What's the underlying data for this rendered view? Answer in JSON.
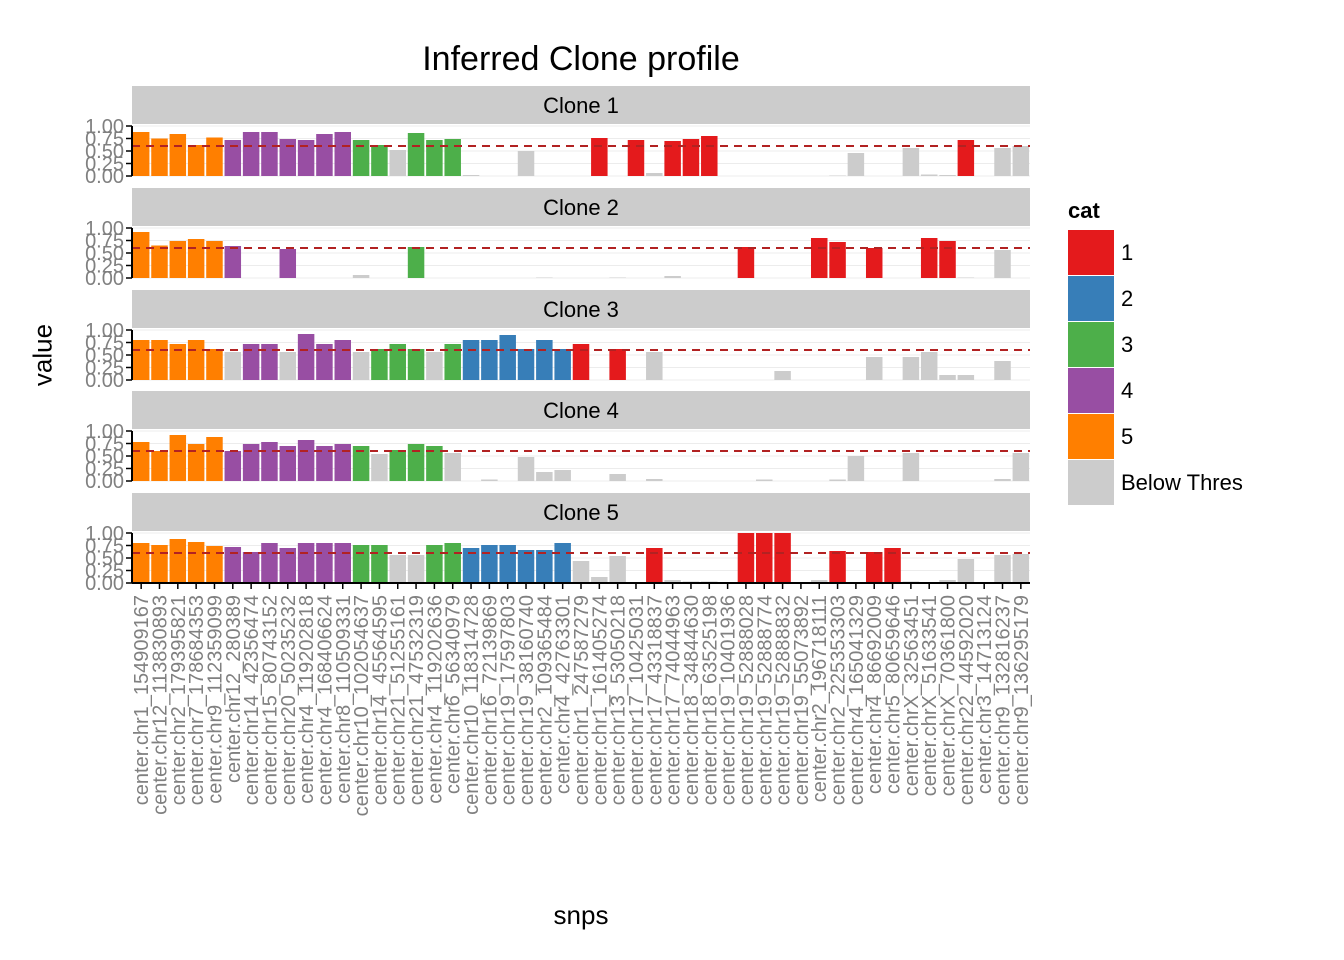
{
  "chart_data": {
    "type": "bar",
    "title": "Inferred Clone profile",
    "xlabel": "snps",
    "ylabel": "value",
    "ylim": [
      0,
      1
    ],
    "y_ticks": [
      "0.00",
      "0.25",
      "0.50",
      "0.75",
      "1.00"
    ],
    "grid": true,
    "legend": {
      "title": "cat",
      "position": "right",
      "entries": [
        {
          "label": "1",
          "color": "#e41a1c"
        },
        {
          "label": "2",
          "color": "#377eb8"
        },
        {
          "label": "3",
          "color": "#4daf4a"
        },
        {
          "label": "4",
          "color": "#984ea3"
        },
        {
          "label": "5",
          "color": "#ff7f00"
        },
        {
          "label": "Below Thres",
          "color": "#cccccc"
        }
      ]
    },
    "categories": [
      "center.chr1_154909167",
      "center.chr12_113830893",
      "center.chr2_179395821",
      "center.chr7_178684353",
      "center.chr9_112359099",
      "center.chr12_280389",
      "center.chr14_42356474",
      "center.chr15_80743152",
      "center.chr20_50235232",
      "center.chr4_119202818",
      "center.chr4_168406624",
      "center.chr8_110509331",
      "center.chr10_102054637",
      "center.chr14_45564595",
      "center.chr21_51255161",
      "center.chr21_47532319",
      "center.chr4_119202636",
      "center.chr6_56340979",
      "center.chr10_118314728",
      "center.chr16_72139869",
      "center.chr19_17597803",
      "center.chr19_38160740",
      "center.chr2_109365484",
      "center.chr4_42763301",
      "center.chr1_247587279",
      "center.chr1_161405274",
      "center.chr13_53050218",
      "center.chr17_10425031",
      "center.chr17_43318837",
      "center.chr17_74044963",
      "center.chr18_34844630",
      "center.chr18_63525198",
      "center.chr19_10401936",
      "center.chr19_52888028",
      "center.chr19_52888774",
      "center.chr19_52888832",
      "center.chr19_55073892",
      "center.chr2_196718111",
      "center.chr2_225353303",
      "center.chr4_165041329",
      "center.chr4_86692009",
      "center.chr5_80659646",
      "center.chrX_32563451",
      "center.chrX_51633541",
      "center.chrX_70361800",
      "center.chr22_44592020",
      "center.chr3_14713124",
      "center.chr9_132816237",
      "center.chr9_136295179"
    ],
    "threshold": 0.6,
    "facets": [
      {
        "label": "Clone 1",
        "values": [
          0.88,
          0.75,
          0.84,
          0.62,
          0.77,
          0.72,
          0.88,
          0.88,
          0.74,
          0.72,
          0.84,
          0.88,
          0.72,
          0.62,
          0.52,
          0.86,
          0.72,
          0.74,
          0.02,
          0,
          0,
          0.5,
          0,
          0,
          0,
          0.76,
          0,
          0.72,
          0.06,
          0.7,
          0.74,
          0.8,
          0,
          0,
          0,
          0,
          0,
          0,
          0.01,
          0.46,
          0,
          0,
          0.56,
          0.03,
          0.02,
          0.72,
          0,
          0.56,
          0.6
        ],
        "cats": [
          "5",
          "5",
          "5",
          "5",
          "5",
          "4",
          "4",
          "4",
          "4",
          "4",
          "4",
          "4",
          "3",
          "3",
          "B",
          "3",
          "3",
          "3",
          "B",
          "B",
          "B",
          "B",
          "B",
          "B",
          "B",
          "1",
          "B",
          "1",
          "B",
          "1",
          "1",
          "1",
          "B",
          "B",
          "B",
          "B",
          "B",
          "B",
          "B",
          "B",
          "B",
          "B",
          "B",
          "B",
          "B",
          "1",
          "B",
          "B",
          "B"
        ]
      },
      {
        "label": "Clone 2",
        "values": [
          0.92,
          0.65,
          0.74,
          0.78,
          0.74,
          0.64,
          0,
          0,
          0.58,
          0,
          0,
          0,
          0.06,
          0,
          0,
          0.62,
          0,
          0,
          0,
          0,
          0,
          0,
          0.01,
          0,
          0,
          0,
          0.01,
          0,
          0,
          0.04,
          0,
          0,
          0,
          0.62,
          0,
          0,
          0,
          0.8,
          0.72,
          0,
          0.6,
          0,
          0,
          0.8,
          0.74,
          0.01,
          0,
          0.56,
          0
        ],
        "cats": [
          "5",
          "5",
          "5",
          "5",
          "5",
          "4",
          "B",
          "B",
          "4",
          "B",
          "B",
          "B",
          "B",
          "B",
          "B",
          "3",
          "B",
          "B",
          "B",
          "B",
          "B",
          "B",
          "B",
          "B",
          "B",
          "B",
          "B",
          "B",
          "B",
          "B",
          "B",
          "B",
          "B",
          "1",
          "B",
          "B",
          "B",
          "1",
          "1",
          "B",
          "1",
          "B",
          "B",
          "1",
          "1",
          "B",
          "B",
          "B",
          "B"
        ]
      },
      {
        "label": "Clone 3",
        "values": [
          0.8,
          0.8,
          0.72,
          0.8,
          0.62,
          0.56,
          0.72,
          0.72,
          0.56,
          0.92,
          0.72,
          0.8,
          0.56,
          0.62,
          0.72,
          0.62,
          0.56,
          0.72,
          0.8,
          0.8,
          0.9,
          0.62,
          0.8,
          0.62,
          0.72,
          0,
          0.62,
          0,
          0.56,
          0,
          0,
          0,
          0,
          0,
          0,
          0.18,
          0,
          0,
          0,
          0,
          0.46,
          0,
          0.46,
          0.56,
          0.1,
          0.1,
          0,
          0.38,
          0
        ],
        "cats": [
          "5",
          "5",
          "5",
          "5",
          "5",
          "B",
          "4",
          "4",
          "B",
          "4",
          "4",
          "4",
          "B",
          "3",
          "3",
          "3",
          "B",
          "3",
          "2",
          "2",
          "2",
          "2",
          "2",
          "2",
          "1",
          "B",
          "1",
          "B",
          "B",
          "B",
          "B",
          "B",
          "B",
          "B",
          "B",
          "B",
          "B",
          "B",
          "B",
          "B",
          "B",
          "B",
          "B",
          "B",
          "B",
          "B",
          "B",
          "B",
          "B"
        ]
      },
      {
        "label": "Clone 4",
        "values": [
          0.78,
          0.6,
          0.92,
          0.74,
          0.88,
          0.6,
          0.74,
          0.78,
          0.7,
          0.82,
          0.7,
          0.74,
          0.7,
          0.54,
          0.62,
          0.74,
          0.7,
          0.56,
          0,
          0.03,
          0,
          0.48,
          0.18,
          0.22,
          0,
          0,
          0.14,
          0,
          0.04,
          0,
          0,
          0,
          0,
          0,
          0.03,
          0,
          0,
          0,
          0.03,
          0.5,
          0,
          0,
          0.56,
          0,
          0,
          0,
          0,
          0.04,
          0.56
        ],
        "cats": [
          "5",
          "5",
          "5",
          "5",
          "5",
          "4",
          "4",
          "4",
          "4",
          "4",
          "4",
          "4",
          "3",
          "B",
          "3",
          "3",
          "3",
          "B",
          "B",
          "B",
          "B",
          "B",
          "B",
          "B",
          "B",
          "B",
          "B",
          "B",
          "B",
          "B",
          "B",
          "B",
          "B",
          "B",
          "B",
          "B",
          "B",
          "B",
          "B",
          "B",
          "B",
          "B",
          "B",
          "B",
          "B",
          "B",
          "B",
          "B",
          "B"
        ]
      },
      {
        "label": "Clone 5",
        "values": [
          0.8,
          0.76,
          0.88,
          0.82,
          0.74,
          0.72,
          0.62,
          0.8,
          0.7,
          0.8,
          0.8,
          0.8,
          0.76,
          0.76,
          0.56,
          0.56,
          0.76,
          0.8,
          0.7,
          0.76,
          0.76,
          0.66,
          0.66,
          0.8,
          0.44,
          0.12,
          0.54,
          0,
          0.7,
          0.06,
          0.03,
          0.03,
          0,
          1.0,
          1.0,
          1.0,
          0,
          0.06,
          0.64,
          0,
          0.62,
          0.7,
          0.03,
          0,
          0.06,
          0.48,
          0.02,
          0.56,
          0.58
        ],
        "cats": [
          "5",
          "5",
          "5",
          "5",
          "5",
          "4",
          "4",
          "4",
          "4",
          "4",
          "4",
          "4",
          "3",
          "3",
          "B",
          "B",
          "3",
          "3",
          "2",
          "2",
          "2",
          "2",
          "2",
          "2",
          "B",
          "B",
          "B",
          "B",
          "1",
          "B",
          "B",
          "B",
          "B",
          "1",
          "1",
          "1",
          "B",
          "B",
          "1",
          "B",
          "1",
          "1",
          "B",
          "B",
          "B",
          "B",
          "B",
          "B",
          "B"
        ]
      }
    ]
  }
}
